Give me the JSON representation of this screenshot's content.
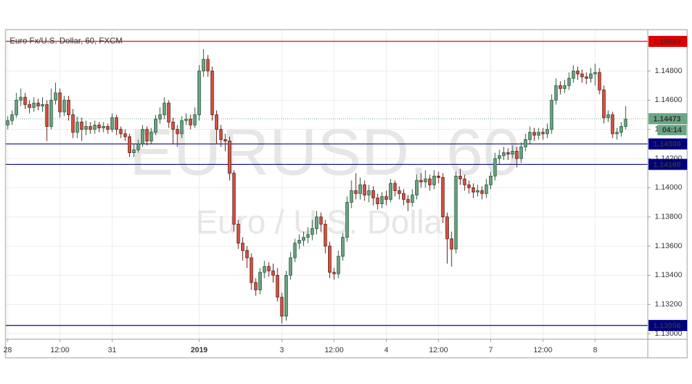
{
  "chart_data": {
    "type": "candlestick",
    "title": "Euro Fx/U.S. Dollar, 60, FXCM",
    "watermark": "EURUSD, 60",
    "watermark_subtitle": "Euro / U.S. Dollar",
    "up_color": "#6ba583",
    "up_border": "#225437",
    "down_color": "#d75442",
    "down_border": "#5b1a13",
    "grid": true,
    "xlim": [
      -0.5,
      147.1
    ],
    "ylim": [
      1.12962,
      1.15074
    ],
    "xticks": [
      {
        "value": 0,
        "label": "28"
      },
      {
        "value": 12,
        "label": "12:00"
      },
      {
        "value": 24,
        "label": "31"
      },
      {
        "value": 44,
        "label": "2019",
        "bold": true
      },
      {
        "value": 63,
        "label": "3"
      },
      {
        "value": 75,
        "label": "12:00"
      },
      {
        "value": 87,
        "label": "4"
      },
      {
        "value": 99,
        "label": "12:00"
      },
      {
        "value": 111,
        "label": "7"
      },
      {
        "value": 123,
        "label": "12:00"
      },
      {
        "value": 135,
        "label": "8"
      }
    ],
    "yticks": [
      {
        "value": 1.13,
        "label": "1.13000"
      },
      {
        "value": 1.132,
        "label": "1.13200"
      },
      {
        "value": 1.134,
        "label": "1.13400"
      },
      {
        "value": 1.136,
        "label": "1.13600"
      },
      {
        "value": 1.138,
        "label": "1.13800"
      },
      {
        "value": 1.14,
        "label": "1.14000"
      },
      {
        "value": 1.142,
        "label": "1.14200"
      },
      {
        "value": 1.144,
        "label": "1.14400"
      },
      {
        "value": 1.146,
        "label": "1.14600"
      },
      {
        "value": 1.148,
        "label": "1.14800"
      }
    ],
    "hlines": [
      {
        "value": 1.15003,
        "label": "1.15003",
        "color": "#e00000"
      },
      {
        "value": 1.143,
        "label": "1.14300",
        "color": "#00007f"
      },
      {
        "value": 1.1416,
        "label": "1.14160",
        "color": "#00007f"
      },
      {
        "value": 1.13056,
        "label": "1.13056",
        "color": "#00007f"
      }
    ],
    "last": {
      "value": 1.14473,
      "label": "1.14473",
      "countdown": "04:14",
      "color": "#6ba583"
    },
    "x": [
      0,
      1,
      2,
      3,
      4,
      5,
      6,
      7,
      8,
      9,
      10,
      11,
      12,
      13,
      14,
      15,
      16,
      17,
      18,
      19,
      20,
      21,
      22,
      23,
      24,
      25,
      26,
      27,
      28,
      29,
      30,
      31,
      32,
      33,
      34,
      35,
      36,
      37,
      38,
      39,
      40,
      41,
      42,
      43,
      44,
      45,
      46,
      47,
      48,
      49,
      50,
      51,
      52,
      53,
      54,
      55,
      56,
      57,
      58,
      59,
      60,
      61,
      62,
      63,
      64,
      65,
      66,
      67,
      68,
      69,
      70,
      71,
      72,
      73,
      74,
      75,
      76,
      77,
      78,
      79,
      80,
      81,
      82,
      83,
      84,
      85,
      86,
      87,
      88,
      89,
      90,
      91,
      92,
      93,
      94,
      95,
      96,
      97,
      98,
      99,
      100,
      101,
      102,
      103,
      104,
      105,
      106,
      107,
      108,
      109,
      110,
      111,
      112,
      113,
      114,
      115,
      116,
      117,
      118,
      119,
      120,
      121,
      122,
      123,
      124,
      125,
      126,
      127,
      128,
      129,
      130,
      131,
      132,
      133,
      134,
      135,
      136,
      137,
      138,
      139,
      140,
      141,
      142
    ],
    "open": [
      1.1443,
      1.1446,
      1.145,
      1.146,
      1.1462,
      1.1457,
      1.1455,
      1.1458,
      1.1456,
      1.1457,
      1.1442,
      1.146,
      1.1465,
      1.1452,
      1.146,
      1.145,
      1.1438,
      1.1445,
      1.144,
      1.1442,
      1.144,
      1.1443,
      1.1441,
      1.1442,
      1.144,
      1.1448,
      1.144,
      1.1437,
      1.1435,
      1.1424,
      1.1426,
      1.143,
      1.144,
      1.1432,
      1.1438,
      1.1447,
      1.145,
      1.1458,
      1.1445,
      1.144,
      1.1437,
      1.1446,
      1.1447,
      1.1443,
      1.145,
      1.148,
      1.1488,
      1.148,
      1.145,
      1.144,
      1.1433,
      1.1432,
      1.141,
      1.1375,
      1.1362,
      1.1357,
      1.1352,
      1.1335,
      1.133,
      1.1342,
      1.1346,
      1.1343,
      1.134,
      1.1325,
      1.1312,
      1.134,
      1.1352,
      1.1362,
      1.1364,
      1.1366,
      1.1368,
      1.1372,
      1.138,
      1.1375,
      1.136,
      1.1342,
      1.1341,
      1.1353,
      1.1366,
      1.139,
      1.1398,
      1.1396,
      1.1402,
      1.1395,
      1.1398,
      1.1393,
      1.1389,
      1.1394,
      1.1392,
      1.1403,
      1.1398,
      1.1396,
      1.1392,
      1.139,
      1.1395,
      1.1405,
      1.1404,
      1.1406,
      1.1402,
      1.1408,
      1.1407,
      1.138,
      1.1365,
      1.1358,
      1.1408,
      1.1406,
      1.1402,
      1.14,
      1.1397,
      1.1398,
      1.1396,
      1.1402,
      1.1408,
      1.142,
      1.1422,
      1.1424,
      1.1423,
      1.1425,
      1.142,
      1.1428,
      1.1433,
      1.1438,
      1.1436,
      1.1438,
      1.1437,
      1.144,
      1.146,
      1.147,
      1.1468,
      1.147,
      1.1475,
      1.148,
      1.1478,
      1.1476,
      1.1475,
      1.1478,
      1.1479,
      1.1467,
      1.1448,
      1.145,
      1.1437,
      1.1438,
      1.1442
    ],
    "high": [
      1.1449,
      1.1453,
      1.1465,
      1.1468,
      1.1465,
      1.146,
      1.1462,
      1.1461,
      1.1462,
      1.146,
      1.1468,
      1.1472,
      1.1468,
      1.1463,
      1.1463,
      1.1454,
      1.1449,
      1.1448,
      1.1446,
      1.1445,
      1.1446,
      1.1445,
      1.1445,
      1.1444,
      1.1451,
      1.145,
      1.1442,
      1.144,
      1.1437,
      1.143,
      1.1433,
      1.1443,
      1.1442,
      1.1441,
      1.145,
      1.1455,
      1.1462,
      1.146,
      1.1448,
      1.1443,
      1.1449,
      1.1451,
      1.145,
      1.1455,
      1.1484,
      1.1495,
      1.1491,
      1.1483,
      1.1453,
      1.1443,
      1.1437,
      1.1435,
      1.1412,
      1.1378,
      1.1366,
      1.136,
      1.1355,
      1.1338,
      1.1345,
      1.135,
      1.1349,
      1.1348,
      1.1345,
      1.1328,
      1.1343,
      1.1356,
      1.1365,
      1.1368,
      1.137,
      1.1373,
      1.1378,
      1.1384,
      1.1383,
      1.1378,
      1.1363,
      1.1345,
      1.1357,
      1.1369,
      1.1394,
      1.1405,
      1.141,
      1.1407,
      1.1405,
      1.1402,
      1.1401,
      1.1396,
      1.1397,
      1.1398,
      1.1406,
      1.1405,
      1.1401,
      1.1399,
      1.1395,
      1.1399,
      1.1409,
      1.141,
      1.1412,
      1.1409,
      1.1412,
      1.1411,
      1.141,
      1.1383,
      1.137,
      1.1411,
      1.1413,
      1.1409,
      1.1405,
      1.1403,
      1.1402,
      1.1401,
      1.1406,
      1.1411,
      1.1424,
      1.1426,
      1.1428,
      1.1427,
      1.1429,
      1.1428,
      1.1431,
      1.1437,
      1.1442,
      1.1441,
      1.1441,
      1.1441,
      1.1444,
      1.1464,
      1.1475,
      1.1473,
      1.1474,
      1.1479,
      1.1484,
      1.1483,
      1.1481,
      1.1479,
      1.1482,
      1.1485,
      1.1482,
      1.147,
      1.1453,
      1.1452,
      1.1441,
      1.1445,
      1.1456
    ],
    "low": [
      1.144,
      1.1443,
      1.1448,
      1.1456,
      1.1454,
      1.1451,
      1.1452,
      1.1453,
      1.1452,
      1.1432,
      1.144,
      1.1457,
      1.1448,
      1.1449,
      1.1446,
      1.1434,
      1.1434,
      1.1432,
      1.1436,
      1.1437,
      1.1437,
      1.1438,
      1.1438,
      1.1437,
      1.1438,
      1.1436,
      1.1434,
      1.1432,
      1.1421,
      1.1421,
      1.1424,
      1.1428,
      1.1429,
      1.143,
      1.1436,
      1.1444,
      1.1447,
      1.1441,
      1.143,
      1.1428,
      1.1434,
      1.1443,
      1.144,
      1.1441,
      1.1446,
      1.1476,
      1.1476,
      1.1446,
      1.143,
      1.1428,
      1.1425,
      1.1405,
      1.137,
      1.1358,
      1.135,
      1.1345,
      1.133,
      1.1326,
      1.1327,
      1.1338,
      1.1339,
      1.1335,
      1.1322,
      1.1307,
      1.1309,
      1.1337,
      1.1349,
      1.1358,
      1.136,
      1.1362,
      1.1364,
      1.1368,
      1.137,
      1.1355,
      1.1338,
      1.1337,
      1.1338,
      1.135,
      1.1363,
      1.1386,
      1.1392,
      1.1392,
      1.1391,
      1.139,
      1.1388,
      1.1385,
      1.1386,
      1.1388,
      1.139,
      1.1394,
      1.1392,
      1.1388,
      1.1384,
      1.1387,
      1.1392,
      1.14,
      1.14,
      1.1398,
      1.1399,
      1.1403,
      1.1376,
      1.1348,
      1.1346,
      1.1355,
      1.1402,
      1.1398,
      1.1396,
      1.1393,
      1.1394,
      1.1392,
      1.1393,
      1.1399,
      1.1405,
      1.1416,
      1.1419,
      1.1419,
      1.142,
      1.1414,
      1.1417,
      1.1425,
      1.143,
      1.1432,
      1.1433,
      1.1433,
      1.1434,
      1.1437,
      1.1457,
      1.1464,
      1.1465,
      1.1467,
      1.1472,
      1.1474,
      1.1472,
      1.1471,
      1.1472,
      1.147,
      1.1464,
      1.1444,
      1.1445,
      1.1434,
      1.1433,
      1.1435,
      1.144
    ],
    "close": [
      1.1446,
      1.145,
      1.146,
      1.1462,
      1.1457,
      1.1455,
      1.1458,
      1.1456,
      1.1457,
      1.1442,
      1.146,
      1.1465,
      1.1452,
      1.146,
      1.145,
      1.1438,
      1.1445,
      1.144,
      1.1442,
      1.144,
      1.1443,
      1.1441,
      1.1442,
      1.144,
      1.1448,
      1.144,
      1.1437,
      1.1435,
      1.1424,
      1.1426,
      1.143,
      1.144,
      1.1432,
      1.1438,
      1.1447,
      1.145,
      1.1458,
      1.1445,
      1.144,
      1.1437,
      1.1446,
      1.1447,
      1.1443,
      1.145,
      1.148,
      1.1488,
      1.148,
      1.145,
      1.144,
      1.1433,
      1.1432,
      1.141,
      1.1375,
      1.1362,
      1.1357,
      1.1352,
      1.1335,
      1.133,
      1.1342,
      1.1346,
      1.1343,
      1.134,
      1.1325,
      1.1312,
      1.134,
      1.1352,
      1.1362,
      1.1364,
      1.1366,
      1.1368,
      1.1372,
      1.138,
      1.1375,
      1.136,
      1.1342,
      1.1341,
      1.1353,
      1.1366,
      1.139,
      1.1398,
      1.1396,
      1.1402,
      1.1395,
      1.1398,
      1.1393,
      1.1389,
      1.1394,
      1.1392,
      1.1403,
      1.1398,
      1.1396,
      1.1392,
      1.139,
      1.1395,
      1.1405,
      1.1404,
      1.1406,
      1.1402,
      1.1408,
      1.1407,
      1.138,
      1.1365,
      1.1358,
      1.1408,
      1.1406,
      1.1402,
      1.14,
      1.1397,
      1.1398,
      1.1396,
      1.1402,
      1.1408,
      1.142,
      1.1422,
      1.1424,
      1.1423,
      1.1425,
      1.142,
      1.1428,
      1.1433,
      1.1438,
      1.1436,
      1.1438,
      1.1437,
      1.144,
      1.146,
      1.147,
      1.1468,
      1.147,
      1.1475,
      1.148,
      1.1478,
      1.1476,
      1.1475,
      1.1478,
      1.1479,
      1.1467,
      1.1448,
      1.145,
      1.1437,
      1.1438,
      1.1442,
      1.1447
    ]
  }
}
